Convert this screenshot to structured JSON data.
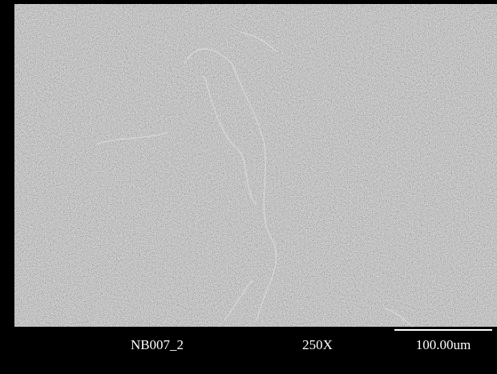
{
  "image": {
    "sample_id": "NB007_2",
    "magnification": "250X",
    "scale_bar": "100.00um"
  }
}
